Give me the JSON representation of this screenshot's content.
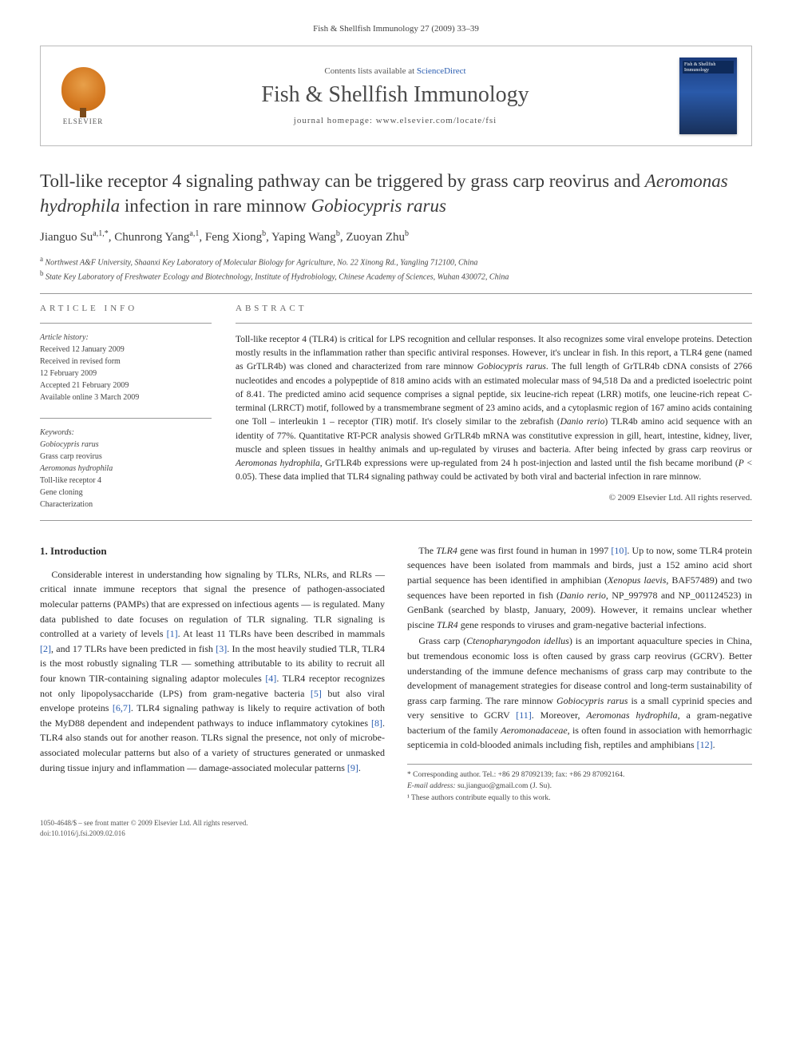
{
  "running_head": "Fish & Shellfish Immunology 27 (2009) 33–39",
  "header": {
    "contents_prefix": "Contents lists available at ",
    "contents_link": "ScienceDirect",
    "journal_name": "Fish & Shellfish Immunology",
    "homepage_prefix": "journal homepage: ",
    "homepage_url": "www.elsevier.com/locate/fsi",
    "elsevier_label": "ELSEVIER",
    "cover_title": "Fish & Shellfish Immunology"
  },
  "article": {
    "title_plain1": "Toll-like receptor 4 signaling pathway can be triggered by grass carp reovirus and ",
    "title_em1": "Aeromonas hydrophila",
    "title_plain2": " infection in rare minnow ",
    "title_em2": "Gobiocypris rarus",
    "authors_html": "Jianguo Su",
    "a1_sup": "a,1,*",
    "a2": ", Chunrong Yang",
    "a2_sup": "a,1",
    "a3": ", Feng Xiong",
    "a3_sup": "b",
    "a4": ", Yaping Wang",
    "a4_sup": "b",
    "a5": ", Zuoyan Zhu",
    "a5_sup": "b",
    "aff_a_sup": "a",
    "aff_a": "Northwest A&F University, Shaanxi Key Laboratory of Molecular Biology for Agriculture, No. 22 Xinong Rd., Yangling 712100, China",
    "aff_b_sup": "b",
    "aff_b": "State Key Laboratory of Freshwater Ecology and Biotechnology, Institute of Hydrobiology, Chinese Academy of Sciences, Wuhan 430072, China"
  },
  "info": {
    "section_label": "ARTICLE INFO",
    "history_label": "Article history:",
    "received": "Received 12 January 2009",
    "revised1": "Received in revised form",
    "revised2": "12 February 2009",
    "accepted": "Accepted 21 February 2009",
    "online": "Available online 3 March 2009",
    "kw_label": "Keywords:",
    "kw1": "Gobiocypris rarus",
    "kw2": "Grass carp reovirus",
    "kw3": "Aeromonas hydrophila",
    "kw4": "Toll-like receptor 4",
    "kw5": "Gene cloning",
    "kw6": "Characterization"
  },
  "abstract": {
    "section_label": "ABSTRACT",
    "text_1": "Toll-like receptor 4 (TLR4) is critical for LPS recognition and cellular responses. It also recognizes some viral envelope proteins. Detection mostly results in the inflammation rather than specific antiviral responses. However, it's unclear in fish. In this report, a TLR4 gene (named as GrTLR4b) was cloned and characterized from rare minnow ",
    "em_1": "Gobiocypris rarus",
    "text_2": ". The full length of GrTLR4b cDNA consists of 2766 nucleotides and encodes a polypeptide of 818 amino acids with an estimated molecular mass of 94,518 Da and a predicted isoelectric point of 8.41. The predicted amino acid sequence comprises a signal peptide, six leucine-rich repeat (LRR) motifs, one leucine-rich repeat C-terminal (LRRCT) motif, followed by a transmembrane segment of 23 amino acids, and a cytoplasmic region of 167 amino acids containing one Toll – interleukin 1 – receptor (TIR) motif. It's closely similar to the zebrafish (",
    "em_2": "Danio rerio",
    "text_3": ") TLR4b amino acid sequence with an identity of 77%. Quantitative RT-PCR analysis showed GrTLR4b mRNA was constitutive expression in gill, heart, intestine, kidney, liver, muscle and spleen tissues in healthy animals and up-regulated by viruses and bacteria. After being infected by grass carp reovirus or ",
    "em_3": "Aeromonas hydrophila",
    "text_4": ", GrTLR4b expressions were up-regulated from 24 h post-injection and lasted until the fish became moribund (",
    "em_4": "P",
    "text_5": " < 0.05). These data implied that TLR4 signaling pathway could be activated by both viral and bacterial infection in rare minnow.",
    "copyright": "© 2009 Elsevier Ltd. All rights reserved."
  },
  "body": {
    "h1": "1. Introduction",
    "p1_a": "Considerable interest in understanding how signaling by TLRs, NLRs, and RLRs — critical innate immune receptors that signal the presence of pathogen-associated molecular patterns (PAMPs) that are expressed on infectious agents — is regulated. Many data published to date focuses on regulation of TLR signaling. TLR signaling is controlled at a variety of levels ",
    "r1": "[1]",
    "p1_b": ". At least 11 TLRs have been described in mammals ",
    "r2": "[2]",
    "p1_c": ", and 17 TLRs have been predicted in fish ",
    "r3": "[3]",
    "p1_d": ". In the most heavily studied TLR, TLR4 is the most robustly signaling TLR — something attributable to its ability to recruit all four known TIR-containing signaling adaptor molecules ",
    "r4": "[4]",
    "p1_e": ". TLR4 receptor recognizes not only lipopolysaccharide (LPS) from gram-negative bacteria ",
    "r5": "[5]",
    "p1_f": " but also viral envelope proteins ",
    "r67": "[6,7]",
    "p1_g": ". TLR4 signaling pathway is likely to require activation of both the MyD88 dependent and independent pathways to induce inflammatory cytokines ",
    "r8": "[8]",
    "p1_h": ". TLR4 also stands out for another reason. TLRs signal the presence, not only of microbe-associated molecular patterns but also of a variety of structures generated or unmasked during tissue injury and inflammation — damage-associated molecular patterns ",
    "r9": "[9]",
    "p1_i": ".",
    "p2_a": "The ",
    "p2_em1": "TLR4",
    "p2_b": " gene was first found in human in 1997 ",
    "r10": "[10]",
    "p2_c": ". Up to now, some TLR4 protein sequences have been isolated from mammals and birds, just a 152 amino acid short partial sequence has been identified in amphibian (",
    "p2_em2": "Xenopus laevis",
    "p2_d": ", BAF57489) and two sequences have been reported in fish (",
    "p2_em3": "Danio rerio",
    "p2_e": ", NP_997978 and NP_001124523) in GenBank (searched by blastp, January, 2009). However, it remains unclear whether piscine ",
    "p2_em4": "TLR4",
    "p2_f": " gene responds to viruses and gram-negative bacterial infections.",
    "p3_a": "Grass carp (",
    "p3_em1": "Ctenopharyngodon idellus",
    "p3_b": ") is an important aquaculture species in China, but tremendous economic loss is often caused by grass carp reovirus (GCRV). Better understanding of the immune defence mechanisms of grass carp may contribute to the development of management strategies for disease control and long-term sustainability of grass carp farming. The rare minnow ",
    "p3_em2": "Gobiocypris rarus",
    "p3_c": " is a small cyprinid species and very sensitive to GCRV ",
    "r11": "[11]",
    "p3_d": ". Moreover, ",
    "p3_em3": "Aeromonas hydrophila",
    "p3_e": ", a gram-negative bacterium of the family ",
    "p3_em4": "Aeromonadaceae",
    "p3_f": ", is often found in association with hemorrhagic septicemia in cold-blooded animals including fish, reptiles and amphibians ",
    "r12": "[12]",
    "p3_g": "."
  },
  "footnotes": {
    "corr": "* Corresponding author. Tel.: +86 29 87092139; fax: +86 29 87092164.",
    "email_label": "E-mail address:",
    "email": " su.jianguo@gmail.com (J. Su).",
    "equal": "¹ These authors contribute equally to this work."
  },
  "footer": {
    "line1": "1050-4648/$ – see front matter © 2009 Elsevier Ltd. All rights reserved.",
    "line2": "doi:10.1016/j.fsi.2009.02.016"
  }
}
